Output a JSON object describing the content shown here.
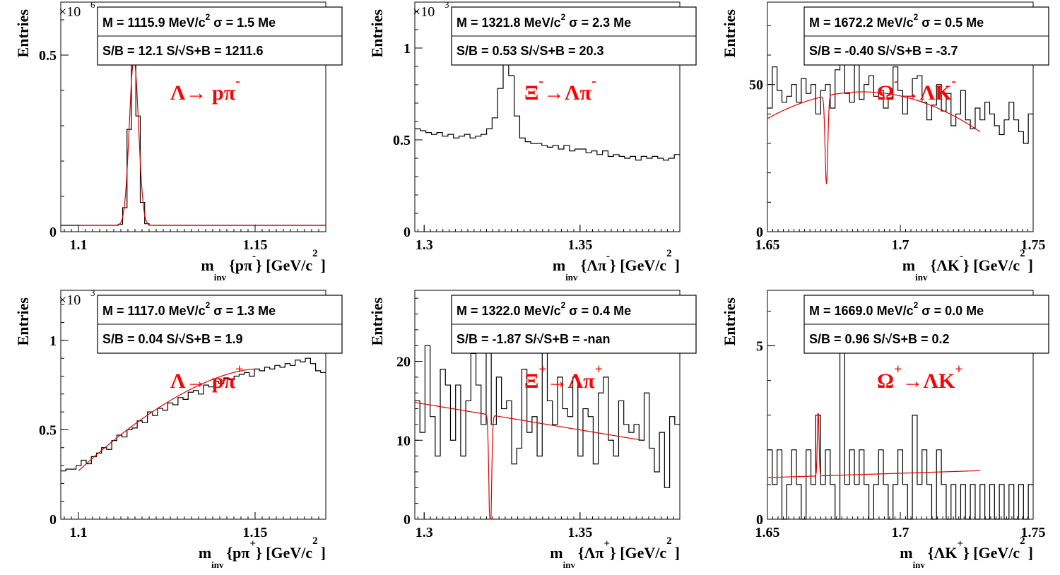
{
  "chart_data": [
    {
      "type": "histogram",
      "ylabel": "Entries",
      "xlabel_main": "m",
      "xlabel_sub": "inv",
      "xlabel_paren": "{pπ",
      "xlabel_charge": "-",
      "xlabel_units": "} [GeV/c",
      "xlabel_units_sup": "2",
      "xlabel_close": "]",
      "exponent": "×10",
      "exponent_sup": "6",
      "xlim": [
        1.095,
        1.17
      ],
      "ylim": [
        0,
        0.65
      ],
      "xticks": [
        1.1,
        1.15
      ],
      "xtick_labels": [
        "1.1",
        "1.15"
      ],
      "yticks": [
        0,
        0.5
      ],
      "ytick_labels": [
        "0",
        "0.5"
      ],
      "decay_label": "Λ→ pπ",
      "decay_sup": "-",
      "stat_line1": "M = 1115.9 MeV/c",
      "stat_line1_sup": "2",
      "stat_line1_tail": "σ = 1.5 Me",
      "stat_line2": "S/B = 12.1   S/√S+B = 1211.6",
      "peak_x": 1.1157,
      "peak_height": 0.5,
      "peak_sigma": 0.0012,
      "baseline": 0.018,
      "fit": {
        "x0": 1.1,
        "x1": 1.17,
        "peak": 0.47,
        "sigma": 0.0013,
        "base": 0.018
      }
    },
    {
      "type": "histogram",
      "ylabel": "Entries",
      "xlabel_main": "m",
      "xlabel_sub": "inv",
      "xlabel_paren": "{Λπ",
      "xlabel_charge": "-",
      "xlabel_units": "} [GeV/c",
      "xlabel_units_sup": "2",
      "xlabel_close": "]",
      "exponent": "×10",
      "exponent_sup": "3",
      "xlim": [
        1.297,
        1.382
      ],
      "ylim": [
        0,
        1.25
      ],
      "xticks": [
        1.3,
        1.35
      ],
      "xtick_labels": [
        "1.3",
        "1.35"
      ],
      "yticks": [
        0,
        0.5,
        1
      ],
      "ytick_labels": [
        "0",
        "0.5",
        "1"
      ],
      "decay_label": "Ξ",
      "decay_sup": "-",
      "decay_label2": "→Λπ",
      "decay_sup2": "-",
      "stat_line1": "M = 1321.8 MeV/c",
      "stat_line1_sup": "2",
      "stat_line1_tail": "σ = 2.3 Me",
      "stat_line2": "S/B = 0.53   S/√S+B = 20.3",
      "bin_values": [
        0.56,
        0.55,
        0.54,
        0.53,
        0.54,
        0.52,
        0.53,
        0.51,
        0.52,
        0.53,
        0.51,
        0.52,
        0.53,
        0.56,
        0.62,
        0.78,
        0.93,
        0.85,
        0.63,
        0.51,
        0.49,
        0.48,
        0.48,
        0.47,
        0.46,
        0.47,
        0.45,
        0.47,
        0.44,
        0.45,
        0.45,
        0.43,
        0.44,
        0.42,
        0.44,
        0.41,
        0.42,
        0.41,
        0.4,
        0.41,
        0.39,
        0.41,
        0.4,
        0.41,
        0.4,
        0.39,
        0.4,
        0.42
      ]
    },
    {
      "type": "histogram",
      "ylabel": "Entries",
      "xlabel_main": "m",
      "xlabel_sub": "inv",
      "xlabel_paren": "{ΛK",
      "xlabel_charge": "-",
      "xlabel_units": "} [GeV/c",
      "xlabel_units_sup": "2",
      "xlabel_close": "]",
      "xlim": [
        1.65,
        1.75
      ],
      "ylim": [
        0,
        78
      ],
      "xticks": [
        1.65,
        1.7,
        1.75
      ],
      "xtick_labels": [
        "1.65",
        "1.7",
        "1.75"
      ],
      "yticks": [
        0,
        50
      ],
      "ytick_labels": [
        "0",
        "50"
      ],
      "decay_label": "Ω",
      "decay_sup": "-",
      "decay_label2": "→ΛK",
      "decay_sup2": "-",
      "stat_line1": "M = 1672.2 MeV/c",
      "stat_line1_sup": "2",
      "stat_line1_tail": "σ = 0.5 Me",
      "stat_line2": "S/B = -0.40   S/√S+B = -3.7",
      "bin_values": [
        42,
        56,
        48,
        44,
        46,
        50,
        44,
        52,
        47,
        50,
        40,
        48,
        50,
        42,
        55,
        60,
        47,
        44,
        57,
        45,
        50,
        53,
        46,
        48,
        42,
        45,
        56,
        48,
        40,
        46,
        52,
        53,
        44,
        38,
        43,
        50,
        41,
        47,
        36,
        40,
        48,
        38,
        35,
        42,
        38,
        44,
        40,
        36,
        33,
        38,
        44,
        38,
        34,
        30,
        40
      ],
      "fit": {
        "x0": 1.65,
        "x1": 1.73,
        "a": 47.5,
        "xc": 1.686,
        "c": 7000,
        "dip_x": 1.6722,
        "dip_depth": 30,
        "dip_sigma": 0.0005
      }
    },
    {
      "type": "histogram",
      "ylabel": "Entries",
      "xlabel_main": "m",
      "xlabel_sub": "inv",
      "xlabel_paren": "{pπ",
      "xlabel_charge": "+",
      "xlabel_units": "} [GeV/c",
      "xlabel_units_sup": "2",
      "xlabel_close": "]",
      "exponent": "×10",
      "exponent_sup": "3",
      "xlim": [
        1.095,
        1.17
      ],
      "ylim": [
        0,
        1.28
      ],
      "xticks": [
        1.1,
        1.15
      ],
      "xtick_labels": [
        "1.1",
        "1.15"
      ],
      "yticks": [
        0,
        0.5,
        1
      ],
      "ytick_labels": [
        "0",
        "0.5",
        "1"
      ],
      "decay_label": "Λ→ pπ",
      "decay_sup": "+",
      "stat_line1": "M = 1117.0 MeV/c",
      "stat_line1_sup": "2",
      "stat_line1_tail": "σ = 1.3 Me",
      "stat_line2": "S/B = 0.04   S/√S+B = 1.9",
      "bin_values": [
        0.27,
        0.28,
        0.28,
        0.3,
        0.33,
        0.31,
        0.35,
        0.37,
        0.4,
        0.39,
        0.44,
        0.47,
        0.46,
        0.5,
        0.51,
        0.55,
        0.54,
        0.6,
        0.58,
        0.62,
        0.61,
        0.65,
        0.64,
        0.68,
        0.67,
        0.71,
        0.72,
        0.7,
        0.75,
        0.74,
        0.77,
        0.76,
        0.79,
        0.78,
        0.8,
        0.81,
        0.82,
        0.8,
        0.84,
        0.83,
        0.85,
        0.84,
        0.86,
        0.85,
        0.87,
        0.86,
        0.89,
        0.88,
        0.9,
        0.87,
        0.83,
        0.82
      ],
      "fit": {
        "x0": 1.1,
        "x1": 1.15,
        "y0": 0.27,
        "y1": 0.84
      }
    },
    {
      "type": "histogram",
      "ylabel": "Entries",
      "xlabel_main": "m",
      "xlabel_sub": "inv",
      "xlabel_paren": "{Λπ",
      "xlabel_charge": "+",
      "xlabel_units": "} [GeV/c",
      "xlabel_units_sup": "2",
      "xlabel_close": "]",
      "xlim": [
        1.297,
        1.382
      ],
      "ylim": [
        0,
        29
      ],
      "xticks": [
        1.3,
        1.35
      ],
      "xtick_labels": [
        "1.3",
        "1.35"
      ],
      "yticks": [
        0,
        10,
        20
      ],
      "ytick_labels": [
        "0",
        "10",
        "20"
      ],
      "decay_label": "Ξ",
      "decay_sup": "+",
      "decay_label2": "→Λπ",
      "decay_sup2": "+",
      "stat_line1": "M = 1322.0 MeV/c",
      "stat_line1_sup": "2",
      "stat_line1_tail": "σ = 0.4 Me",
      "stat_line2": "S/B = -1.87   S/√S+B = -nan",
      "bin_values": [
        15,
        11,
        22,
        13,
        8,
        19,
        17,
        10,
        17,
        8,
        15,
        21,
        17,
        12,
        22,
        12,
        18,
        14,
        15,
        7,
        9,
        19,
        11,
        13,
        8,
        22,
        15,
        12,
        18,
        14,
        13,
        18,
        8,
        14,
        13,
        7,
        16,
        18,
        10,
        8,
        15,
        12,
        11,
        12,
        10,
        16,
        9,
        6,
        11,
        4,
        13,
        12
      ],
      "fit": {
        "x0": 1.297,
        "x1": 1.37,
        "y0": 14.8,
        "y1": 10.0,
        "dip_x": 1.3212,
        "dip_depth": 16,
        "dip_sigma": 0.0004
      }
    },
    {
      "type": "histogram",
      "ylabel": "Entries",
      "xlabel_main": "m",
      "xlabel_sub": "inv",
      "xlabel_paren": "{ΛK",
      "xlabel_charge": "+",
      "xlabel_units": "} [GeV/c",
      "xlabel_units_sup": "2",
      "xlabel_close": "]",
      "xlim": [
        1.65,
        1.75
      ],
      "ylim": [
        0,
        6.6
      ],
      "xticks": [
        1.65,
        1.7,
        1.75
      ],
      "xtick_labels": [
        "1.65",
        "1.7",
        "1.75"
      ],
      "yticks": [
        0,
        5
      ],
      "ytick_labels": [
        "0",
        "5"
      ],
      "decay_label": "Ω",
      "decay_sup": "+",
      "decay_label2": "→ΛK",
      "decay_sup2": "+",
      "stat_line1": "M = 1669.0 MeV/c",
      "stat_line1_sup": "2",
      "stat_line1_tail": "σ = 0.0 Me",
      "stat_line2": "S/B = 0.96   S/√S+B = 0.2",
      "bin_values": [
        2,
        1,
        2,
        0,
        1,
        2,
        1,
        0,
        2,
        1,
        3,
        1,
        2,
        1,
        0,
        5,
        1,
        2,
        1,
        2,
        1,
        0,
        1,
        2,
        1,
        0,
        1,
        2,
        1,
        0,
        3,
        1,
        2,
        1,
        0,
        2,
        1,
        0,
        1,
        0,
        1,
        0,
        1,
        0,
        1,
        0,
        1,
        0,
        1,
        0,
        1,
        0,
        1,
        0,
        1
      ],
      "fit": {
        "x0": 1.65,
        "x1": 1.73,
        "y0": 1.2,
        "y1": 1.4,
        "bump_x": 1.6691,
        "bump_height": 1.9,
        "bump_sigma": 0.0003
      }
    }
  ],
  "colors": {
    "histogram": "#000000",
    "fit": "#e00000",
    "decay_label": "#ff0000",
    "frame": "#000000",
    "background": "#ffffff"
  }
}
